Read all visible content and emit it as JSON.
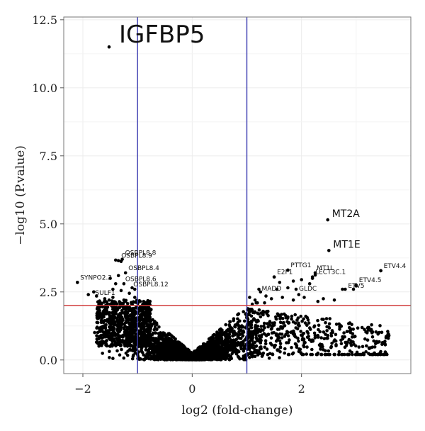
{
  "chart_data": {
    "type": "scatter",
    "title": "",
    "xlabel": "log2 (fold-change)",
    "ylabel": "−log10 (P.value)",
    "xlim": [
      -2.35,
      4.0
    ],
    "ylim": [
      -0.5,
      12.6
    ],
    "x_ticks": [
      {
        "v": -2,
        "label": "−2"
      },
      {
        "v": 0,
        "label": "0"
      },
      {
        "v": 2,
        "label": "2"
      }
    ],
    "y_ticks": [
      {
        "v": 0,
        "label": "0.0"
      },
      {
        "v": 2.5,
        "label": "2.5"
      },
      {
        "v": 5,
        "label": "5.0"
      },
      {
        "v": 7.5,
        "label": "7.5"
      },
      {
        "v": 10,
        "label": "10.0"
      },
      {
        "v": 12.5,
        "label": "12.5"
      }
    ],
    "grid": true,
    "threshold_lines": {
      "vertical": [
        -1,
        1
      ],
      "horizontal": 2.0
    },
    "colors": {
      "points": "#000000",
      "vertical_lines": "#3b3bb0",
      "horizontal_line": "#d03b3b",
      "grid": "#ececec",
      "frame": "#777777"
    },
    "labeled_genes": [
      {
        "name": "IGFBP5",
        "x": -1.52,
        "y": 11.5,
        "size": "large"
      },
      {
        "name": "MT2A",
        "x": 2.48,
        "y": 5.15,
        "size": "medium"
      },
      {
        "name": "MT1E",
        "x": 2.5,
        "y": 4.02,
        "size": "medium"
      },
      {
        "name": "OSBPL8.9",
        "x": -1.35,
        "y": 3.65,
        "size": "small"
      },
      {
        "name": "OSBPL8.8",
        "x": -1.28,
        "y": 3.7,
        "size": "small"
      },
      {
        "name": "OSBPL8.4",
        "x": -1.22,
        "y": 3.2,
        "size": "small"
      },
      {
        "name": "OSBPL8.6",
        "x": -1.25,
        "y": 2.8,
        "size": "small"
      },
      {
        "name": "OSBPL8.12",
        "x": -1.05,
        "y": 2.6,
        "size": "small"
      },
      {
        "name": "SYNPO2.2",
        "x": -2.1,
        "y": 2.85,
        "size": "small"
      },
      {
        "name": "SULF1",
        "x": -1.8,
        "y": 2.5,
        "size": "small"
      },
      {
        "name": "PTTG1",
        "x": 1.75,
        "y": 3.3,
        "size": "small"
      },
      {
        "name": "E2F1",
        "x": 1.5,
        "y": 3.05,
        "size": "small"
      },
      {
        "name": "MT1L",
        "x": 2.25,
        "y": 3.2,
        "size": "small"
      },
      {
        "name": "LECT3C.1",
        "x": 2.2,
        "y": 3.05,
        "size": "small"
      },
      {
        "name": "ETV4.4",
        "x": 3.45,
        "y": 3.28,
        "size": "small"
      },
      {
        "name": "ETV4.5",
        "x": 3.0,
        "y": 2.75,
        "size": "small"
      },
      {
        "name": "ETV5",
        "x": 2.8,
        "y": 2.6,
        "size": "small"
      },
      {
        "name": "GLDC",
        "x": 1.9,
        "y": 2.6,
        "size": "small"
      },
      {
        "name": "MADD",
        "x": 1.22,
        "y": 2.6,
        "size": "small"
      }
    ],
    "point_cloud": {
      "description_in_data_units": true,
      "n_background_points": 2200,
      "left_significant_x_range": [
        -1.8,
        -0.8
      ],
      "right_significant_x_range": [
        1.0,
        3.6
      ]
    }
  }
}
